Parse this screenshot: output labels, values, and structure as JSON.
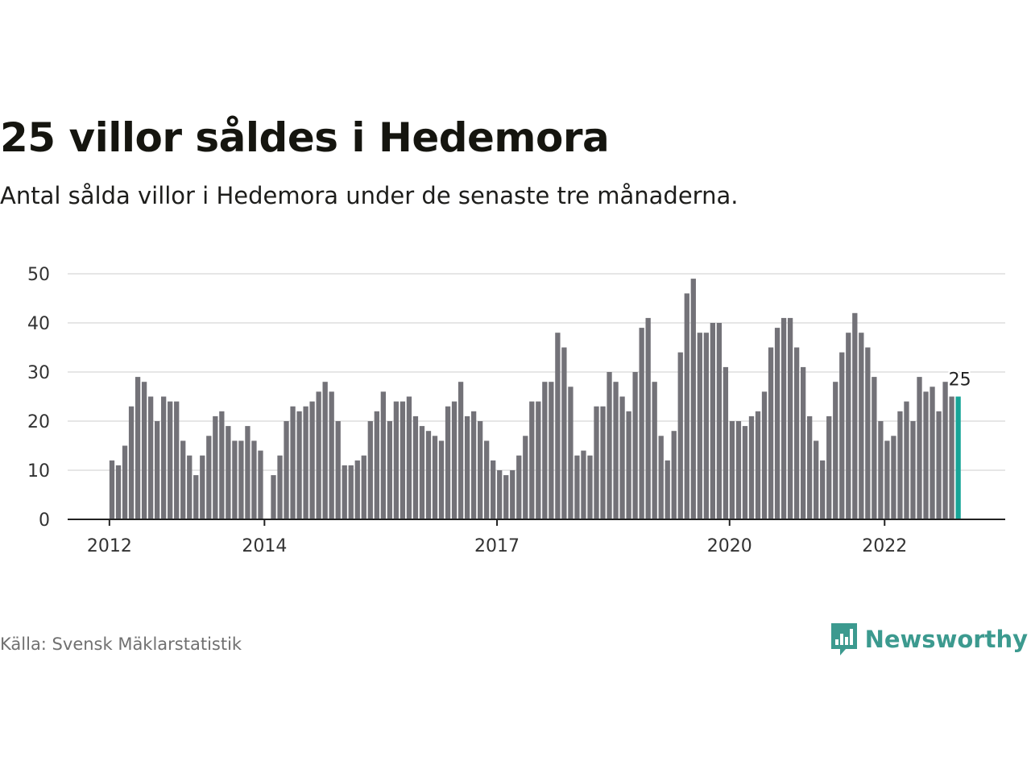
{
  "header": {
    "title": "25 villor såldes i Hedemora",
    "subtitle": "Antal sålda villor i Hedemora under de senaste tre månaderna."
  },
  "footer": {
    "source": "Källa: Svensk Mäklarstatistik",
    "brand": "Newsworthy",
    "brand_icon": "newsworthy-logo-icon"
  },
  "colors": {
    "bar": "#737278",
    "highlight": "#17a598",
    "grid": "#dedede",
    "axis": "#222222",
    "brand": "#3c9a8f"
  },
  "chart_data": {
    "type": "bar",
    "title": "25 villor såldes i Hedemora",
    "xlabel": "",
    "ylabel": "",
    "ylim": [
      0,
      50
    ],
    "yticks": [
      0,
      10,
      20,
      30,
      40,
      50
    ],
    "grid": true,
    "x_tick_labels": [
      {
        "label": "2012",
        "index": 0
      },
      {
        "label": "2014",
        "index": 24
      },
      {
        "label": "2017",
        "index": 60
      },
      {
        "label": "2020",
        "index": 96
      },
      {
        "label": "2022",
        "index": 120
      }
    ],
    "highlight": {
      "index": 131,
      "label": "25"
    },
    "values": [
      12,
      11,
      15,
      23,
      29,
      28,
      25,
      20,
      25,
      24,
      24,
      16,
      13,
      9,
      13,
      17,
      21,
      22,
      19,
      16,
      16,
      19,
      16,
      14,
      null,
      9,
      13,
      20,
      23,
      22,
      23,
      24,
      26,
      28,
      26,
      20,
      11,
      11,
      12,
      13,
      20,
      22,
      26,
      20,
      24,
      24,
      25,
      21,
      19,
      18,
      17,
      16,
      23,
      24,
      28,
      21,
      22,
      20,
      16,
      12,
      10,
      9,
      10,
      13,
      17,
      24,
      24,
      28,
      28,
      38,
      35,
      27,
      13,
      14,
      13,
      23,
      23,
      30,
      28,
      25,
      22,
      30,
      39,
      41,
      28,
      17,
      12,
      18,
      34,
      46,
      49,
      38,
      38,
      40,
      40,
      31,
      20,
      20,
      19,
      21,
      22,
      26,
      35,
      39,
      41,
      41,
      35,
      31,
      21,
      16,
      12,
      21,
      28,
      34,
      38,
      42,
      38,
      35,
      29,
      20,
      16,
      17,
      22,
      24,
      20,
      29,
      26,
      27,
      22,
      28,
      25,
      25
    ]
  }
}
